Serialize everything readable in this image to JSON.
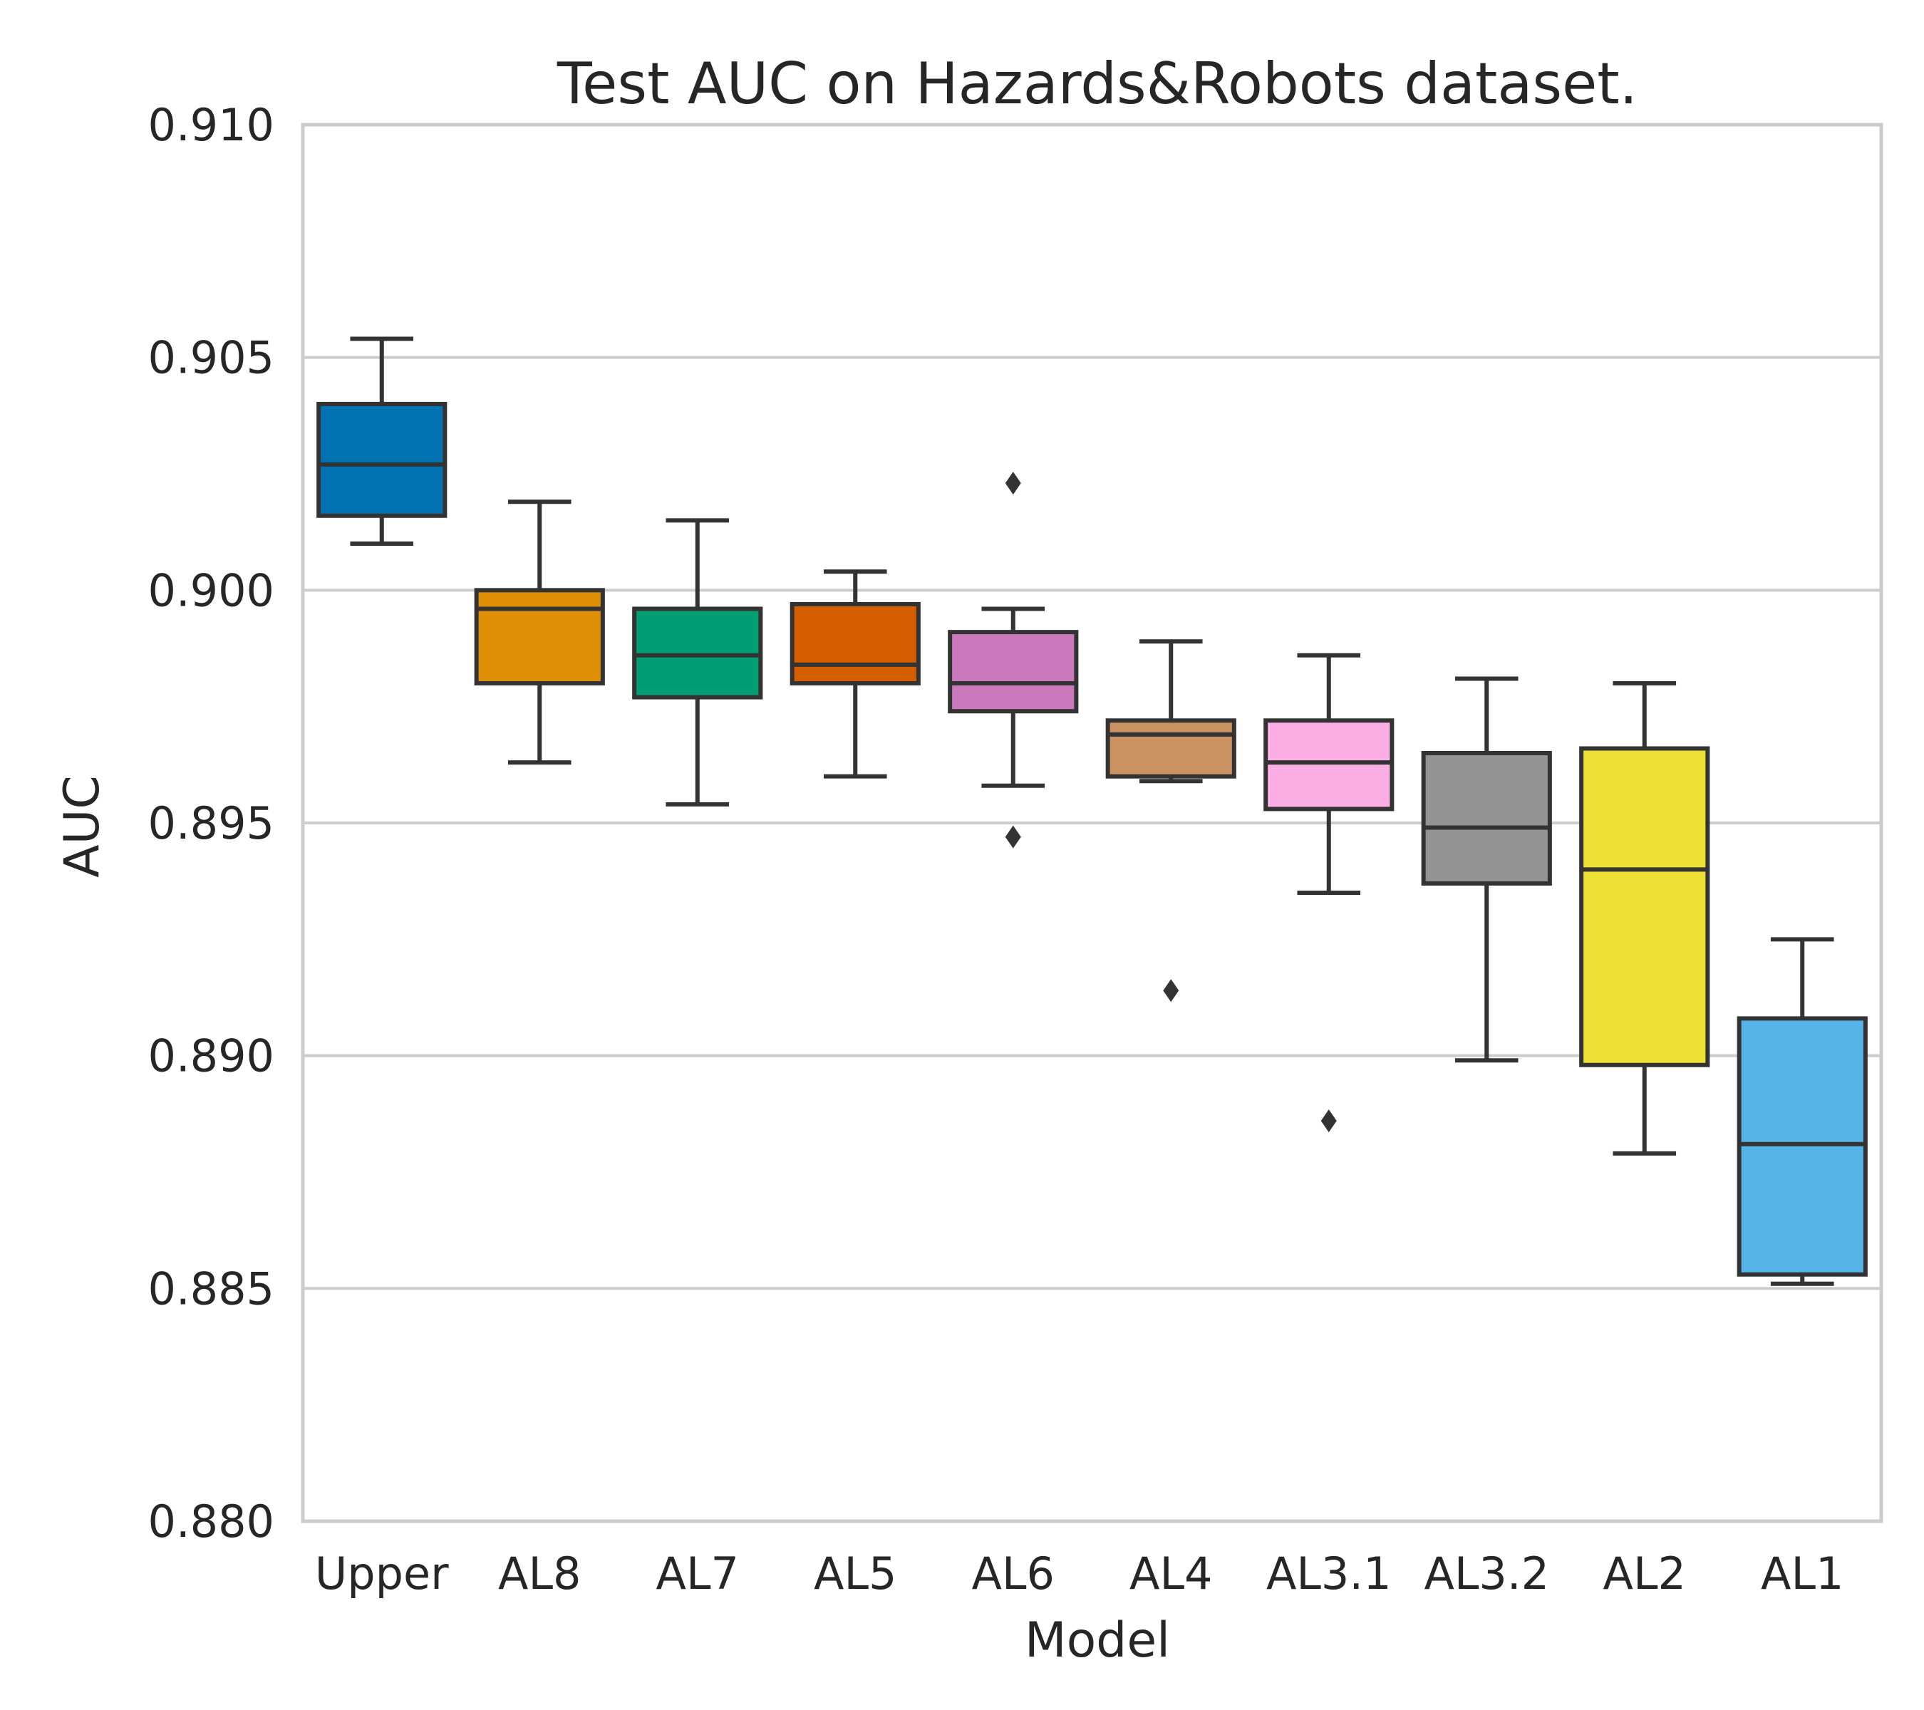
{
  "chart_data": {
    "type": "box",
    "title": "Test AUC on Hazards&Robots dataset.",
    "xlabel": "Model",
    "ylabel": "AUC",
    "ylim": [
      0.88,
      0.91
    ],
    "yticks": [
      "0.880",
      "0.885",
      "0.890",
      "0.895",
      "0.900",
      "0.905",
      "0.910"
    ],
    "grid": "horizontal",
    "categories": [
      "Upper",
      "AL8",
      "AL7",
      "AL5",
      "AL6",
      "AL4",
      "AL3.1",
      "AL3.2",
      "AL2",
      "AL1"
    ],
    "colors": [
      "#0173b2",
      "#de8f05",
      "#029e73",
      "#d55e00",
      "#cc78bc",
      "#ca9161",
      "#fbafe4",
      "#949494",
      "#ece133",
      "#56b4e9"
    ],
    "boxes": [
      {
        "whisker_low": 0.901,
        "q1": 0.9016,
        "median": 0.9027,
        "q3": 0.904,
        "whisker_high": 0.9054,
        "outliers": []
      },
      {
        "whisker_low": 0.8963,
        "q1": 0.898,
        "median": 0.8996,
        "q3": 0.9,
        "whisker_high": 0.9019,
        "outliers": []
      },
      {
        "whisker_low": 0.8954,
        "q1": 0.8977,
        "median": 0.8986,
        "q3": 0.8996,
        "whisker_high": 0.9015,
        "outliers": []
      },
      {
        "whisker_low": 0.896,
        "q1": 0.898,
        "median": 0.8984,
        "q3": 0.8997,
        "whisker_high": 0.9004,
        "outliers": []
      },
      {
        "whisker_low": 0.8958,
        "q1": 0.8974,
        "median": 0.898,
        "q3": 0.8991,
        "whisker_high": 0.8996,
        "outliers": [
          0.9023,
          0.8947
        ]
      },
      {
        "whisker_low": 0.8959,
        "q1": 0.896,
        "median": 0.8969,
        "q3": 0.8972,
        "whisker_high": 0.8989,
        "outliers": [
          0.8914
        ]
      },
      {
        "whisker_low": 0.8935,
        "q1": 0.8953,
        "median": 0.8963,
        "q3": 0.8972,
        "whisker_high": 0.8986,
        "outliers": [
          0.8886
        ]
      },
      {
        "whisker_low": 0.8899,
        "q1": 0.8937,
        "median": 0.8949,
        "q3": 0.8965,
        "whisker_high": 0.8981,
        "outliers": []
      },
      {
        "whisker_low": 0.8879,
        "q1": 0.8898,
        "median": 0.894,
        "q3": 0.8966,
        "whisker_high": 0.898,
        "outliers": []
      },
      {
        "whisker_low": 0.8851,
        "q1": 0.8853,
        "median": 0.8881,
        "q3": 0.8908,
        "whisker_high": 0.8925,
        "outliers": []
      }
    ]
  }
}
